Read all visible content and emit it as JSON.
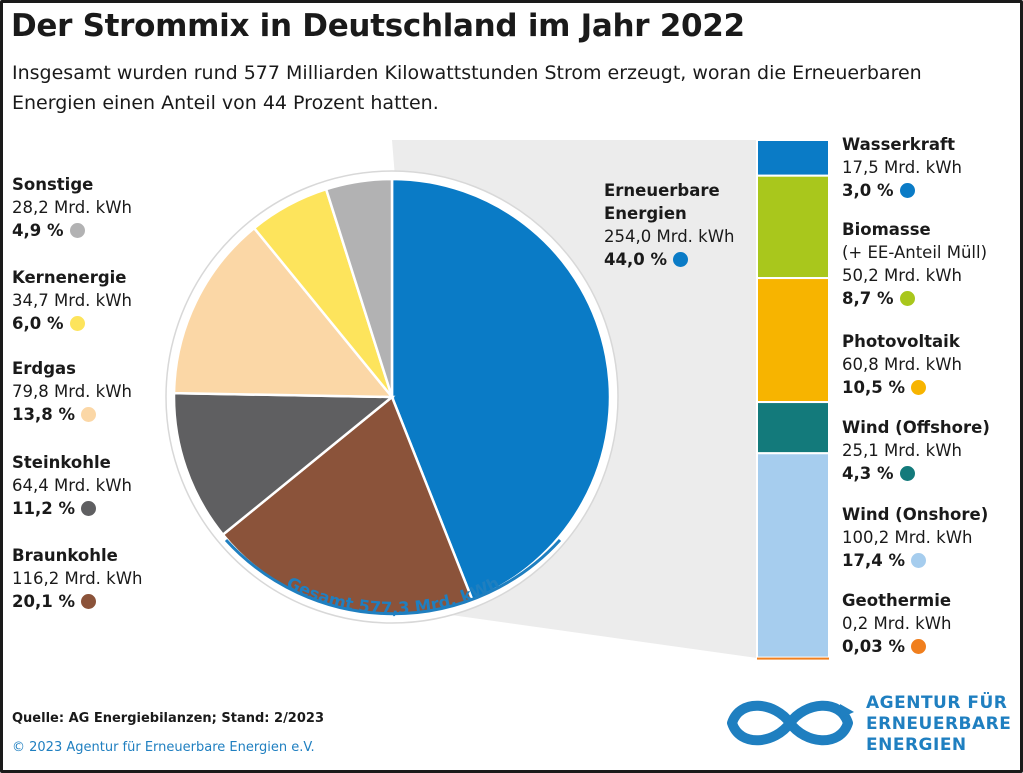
{
  "title": "Der Strommix in Deutschland im Jahr 2022",
  "subtitle": "Insgesamt wurden rund 577 Milliarden Kilowattstunden Strom erzeugt, woran die Erneuerbaren Energien einen Anteil von 44 Prozent hatten.",
  "total_label": "Gesamt 577,3 Mrd. kWh",
  "footer": {
    "source": "Quelle: AG Energiebilanzen; Stand: 2/2023",
    "copyright": "© 2023 Agentur für Erneuerbare Energien e.V."
  },
  "logo": {
    "line1": "AGENTUR FÜR",
    "line2": "ERNEUERBARE",
    "line3": "ENERGIEN"
  },
  "chart_data": [
    {
      "type": "pie",
      "unit": "Mrd. kWh",
      "slices": [
        {
          "name": "Erneuerbare Energien",
          "value_label": "254,0 Mrd. kWh",
          "percent_label": "44,0 %",
          "value": 254.0,
          "percent": 44.0,
          "color": "#0a7bc6"
        },
        {
          "name": "Braunkohle",
          "value_label": "116,2 Mrd. kWh",
          "percent_label": "20,1 %",
          "value": 116.2,
          "percent": 20.1,
          "color": "#8b533a"
        },
        {
          "name": "Steinkohle",
          "value_label": "64,4 Mrd. kWh",
          "percent_label": "11,2 %",
          "value": 64.4,
          "percent": 11.2,
          "color": "#5f5f61"
        },
        {
          "name": "Erdgas",
          "value_label": "79,8 Mrd. kWh",
          "percent_label": "13,8 %",
          "value": 79.8,
          "percent": 13.8,
          "color": "#fbd7a6"
        },
        {
          "name": "Kernenergie",
          "value_label": "34,7 Mrd. kWh",
          "percent_label": "6,0 %",
          "value": 34.7,
          "percent": 6.0,
          "color": "#fde45c"
        },
        {
          "name": "Sonstige",
          "value_label": "28,2 Mrd. kWh",
          "percent_label": "4,9 %",
          "value": 28.2,
          "percent": 4.9,
          "color": "#b2b2b3"
        }
      ]
    },
    {
      "type": "bar",
      "stacked": true,
      "unit": "Mrd. kWh",
      "segments": [
        {
          "name": "Wasserkraft",
          "value_label": "17,5 Mrd. kWh",
          "percent_label": "3,0 %",
          "value": 17.5,
          "percent": 3.0,
          "color": "#0a7bc6"
        },
        {
          "name": "Biomasse",
          "name2": "(+ EE-Anteil Müll)",
          "value_label": "50,2 Mrd. kWh",
          "percent_label": "8,7 %",
          "value": 50.2,
          "percent": 8.7,
          "color": "#a9c71c"
        },
        {
          "name": "Photovoltaik",
          "value_label": "60,8 Mrd. kWh",
          "percent_label": "10,5 %",
          "value": 60.8,
          "percent": 10.5,
          "color": "#f7b400"
        },
        {
          "name": "Wind (Offshore)",
          "value_label": "25,1 Mrd. kWh",
          "percent_label": "4,3 %",
          "value": 25.1,
          "percent": 4.3,
          "color": "#137a7b"
        },
        {
          "name": "Wind (Onshore)",
          "value_label": "100,2 Mrd. kWh",
          "percent_label": "17,4 %",
          "value": 100.2,
          "percent": 17.4,
          "color": "#a6cdee"
        },
        {
          "name": "Geothermie",
          "value_label": "0,2 Mrd. kWh",
          "percent_label": "0,03 %",
          "value": 0.2,
          "percent": 0.03,
          "color": "#f07f1e"
        }
      ]
    }
  ]
}
